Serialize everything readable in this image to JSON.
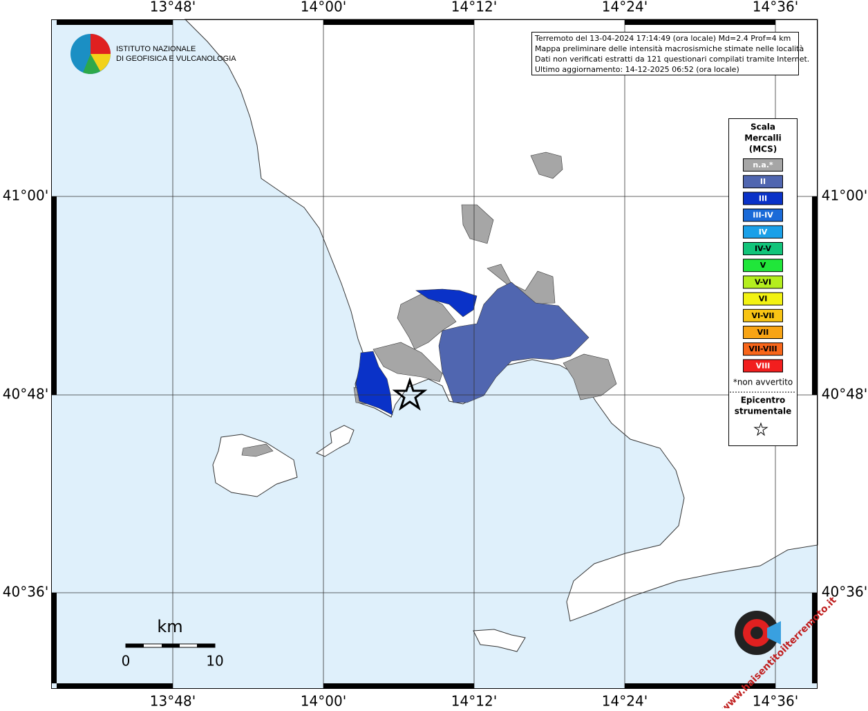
{
  "axes": {
    "longitude_labels": [
      "13°48'",
      "14°00'",
      "14°12'",
      "14°24'",
      "14°36'"
    ],
    "latitude_labels": [
      "41°00'",
      "40°48'",
      "40°36'"
    ]
  },
  "info_box": {
    "lines": [
      "Terremoto del 13-04-2024 17:14:49 (ora locale) Md=2.4 Prof=4 km",
      "Mappa preliminare delle intensità macrosismiche stimate nelle località",
      "Dati non verificati estratti da 121 questionari compilati tramite Internet.",
      "Ultimo aggiornamento: 14-12-2025 06:52 (ora locale)"
    ]
  },
  "logo": {
    "lines": [
      "ISTITUTO NAZIONALE",
      "DI GEOFISICA E VULCANOLOGIA"
    ]
  },
  "legend": {
    "title": [
      "Scala",
      "Mercalli",
      "(MCS)"
    ],
    "items": [
      {
        "label": "n.a.*",
        "color": "#a6a6a6",
        "text_color": "#ffffff"
      },
      {
        "label": "II",
        "color": "#5066b0",
        "text_color": "#ffffff"
      },
      {
        "label": "III",
        "color": "#0a32c8",
        "text_color": "#ffffff"
      },
      {
        "label": "III-IV",
        "color": "#1a6ad8",
        "text_color": "#ffffff"
      },
      {
        "label": "IV",
        "color": "#1aa0e8",
        "text_color": "#ffffff"
      },
      {
        "label": "IV-V",
        "color": "#12c47a",
        "text_color": "#000000"
      },
      {
        "label": "V",
        "color": "#20e63a",
        "text_color": "#000000"
      },
      {
        "label": "V-VI",
        "color": "#b4ee1e",
        "text_color": "#000000"
      },
      {
        "label": "VI",
        "color": "#f2f212",
        "text_color": "#000000"
      },
      {
        "label": "VI-VII",
        "color": "#f8c414",
        "text_color": "#000000"
      },
      {
        "label": "VII",
        "color": "#f8a414",
        "text_color": "#000000"
      },
      {
        "label": "VII-VIII",
        "color": "#f8661a",
        "text_color": "#000000"
      },
      {
        "label": "VIII",
        "color": "#f21e1e",
        "text_color": "#ffffff"
      }
    ],
    "note": "*non avvertito",
    "epicenter": [
      "Epicentro",
      "strumentale"
    ]
  },
  "scale_bar": {
    "unit": "km",
    "labels": [
      0,
      10
    ]
  },
  "watermark": "www.haisentitoilterremoto.it"
}
